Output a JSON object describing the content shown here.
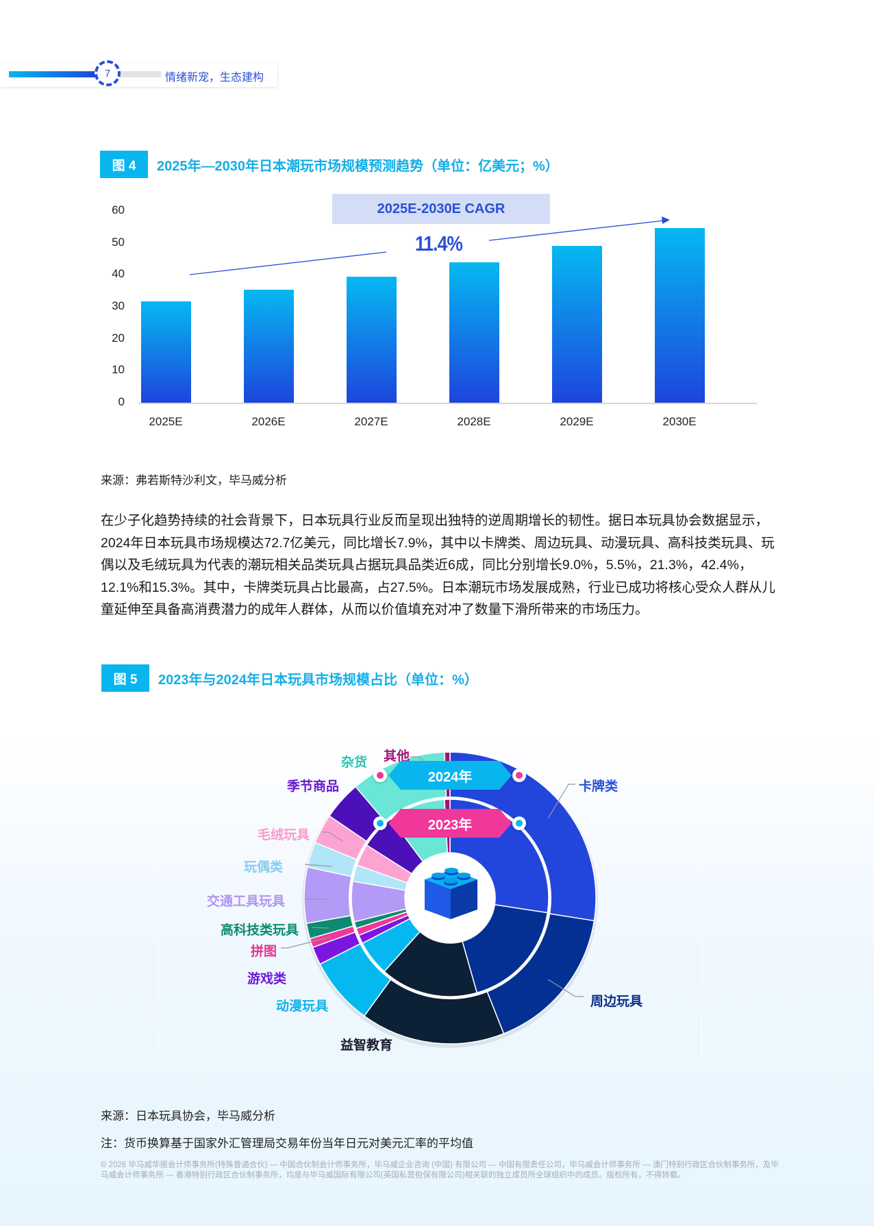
{
  "header": {
    "page_number": "7",
    "section_title": "情绪新宠，生态建构",
    "progress_colors": {
      "start": "#06b6f0",
      "end": "#1e40d8"
    }
  },
  "figure4": {
    "tag": "图 4",
    "title": "2025年—2030年日本潮玩市场规模预测趋势（单位：亿美元；%）",
    "cagr_label": "2025E-2030E CAGR",
    "cagr_value": "11.4%",
    "source": "来源：弗若斯特沙利文，毕马威分析"
  },
  "paragraph": "在少子化趋势持续的社会背景下，日本玩具行业反而呈现出独特的逆周期增长的韧性。据日本玩具协会数据显示，2024年日本玩具市场规模达72.7亿美元，同比增长7.9%，其中以卡牌类、周边玩具、动漫玩具、高科技类玩具、玩偶以及毛绒玩具为代表的潮玩相关品类玩具占据玩具品类近6成，同比分别增长9.0%，5.5%，21.3%，42.4%，12.1%和15.3%。其中，卡牌类玩具占比最高，占27.5%。日本潮玩市场发展成熟，行业已成功将核心受众人群从儿童延伸至具备高消费潜力的成年人群体，从而以价值填充对冲了数量下滑所带来的市场压力。",
  "figure5": {
    "tag": "图 5",
    "title": "2023年与2024年日本玩具市场规模占比（单位：%）",
    "outer_ring_label": "2024年",
    "inner_ring_label": "2023年",
    "center_icon": "lego-brick-icon",
    "source": "来源：日本玩具协会，毕马威分析",
    "note": "注：货币换算基于国家外汇管理局交易年份当年日元对美元汇率的平均值"
  },
  "footer": "© 2026 毕马威华振会计师事务所(特殊普通合伙) — 中国合伙制会计师事务所，毕马威企业咨询 (中国) 有限公司 — 中国有限责任公司，毕马威会计师事务所 — 澳门特别行政区合伙制事务所，及毕马威会计师事务所 — 香港特别行政区合伙制事务所，均是与毕马威国际有限公司(英国私营担保有限公司)相关联的独立成员所全球组织中的成员。版权所有，不得转载。",
  "chart_data": [
    {
      "type": "bar",
      "title": "2025年—2030年日本潮玩市场规模预测趋势（单位：亿美元；%）",
      "categories": [
        "2025E",
        "2026E",
        "2027E",
        "2028E",
        "2029E",
        "2030E"
      ],
      "values": [
        31.8,
        35.4,
        39.5,
        44.0,
        49.0,
        54.6
      ],
      "xlabel": "",
      "ylabel": "亿美元",
      "ylim": [
        0,
        60
      ],
      "yticks": [
        0,
        10,
        20,
        30,
        40,
        50,
        60
      ],
      "grid": false,
      "annotations": [
        {
          "text": "2025E-2030E CAGR",
          "value": "11.4%"
        }
      ],
      "bar_gradient": {
        "top": "#06b8f1",
        "bottom": "#1d45dd"
      }
    },
    {
      "type": "pie",
      "subtype": "nested-donut",
      "title": "2023年与2024年日本玩具市场规模占比（单位：%）",
      "categories": [
        "卡牌类",
        "周边玩具",
        "益智教育",
        "动漫玩具",
        "游戏类",
        "拼图",
        "高科技类玩具",
        "交通工具玩具",
        "玩偶类",
        "毛绒玩具",
        "季节商品",
        "杂货",
        "其他"
      ],
      "colors": [
        "#2246dc",
        "#033092",
        "#0c2036",
        "#06b8f0",
        "#7a16e0",
        "#f0379a",
        "#0d8a72",
        "#b29af6",
        "#b0e6f8",
        "#fda3d2",
        "#4b10b8",
        "#69e6d6",
        "#a3127a"
      ],
      "label_colors": [
        "#2a4fd8",
        "#0b2f8a",
        "#1a1a2e",
        "#15b2ea",
        "#6d1ad8",
        "#e8328c",
        "#0d8a72",
        "#b096f2",
        "#86cdf0",
        "#f89dcc",
        "#6a1ad0",
        "#2cc4b0",
        "#a3127a"
      ],
      "series": [
        {
          "name": "2024年",
          "ring": "outer",
          "values": [
            27.5,
            16.5,
            16.0,
            7.5,
            2.0,
            1.0,
            1.7,
            6.2,
            2.8,
            3.3,
            4.3,
            10.6,
            0.6
          ]
        },
        {
          "name": "2023年",
          "ring": "inner",
          "values": [
            27.4,
            18.2,
            16.0,
            5.8,
            1.4,
            1.2,
            1.1,
            6.6,
            2.7,
            3.6,
            5.8,
            9.3,
            0.9
          ]
        }
      ]
    }
  ]
}
